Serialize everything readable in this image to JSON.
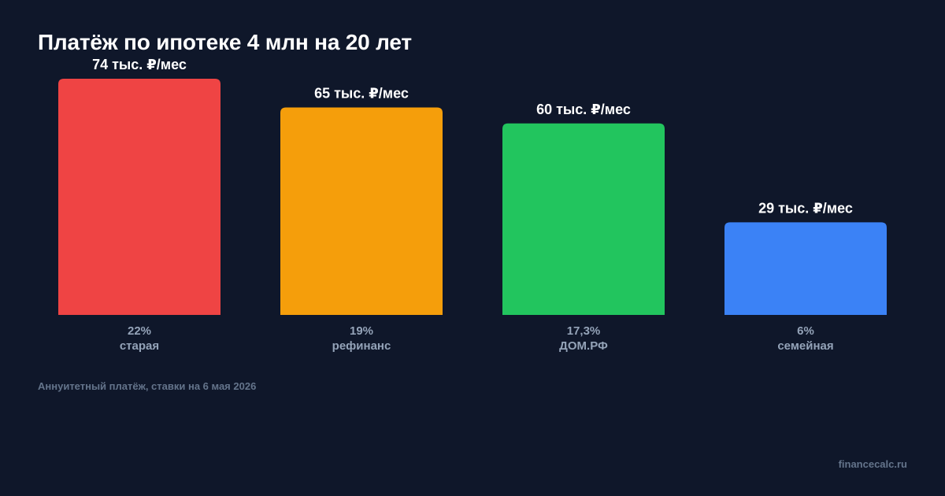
{
  "chart_data": {
    "type": "bar",
    "title": "Платёж по ипотеке 4 млн на 20 лет",
    "categories": [
      "старая",
      "рефинанс",
      "ДОМ.РФ",
      "семейная"
    ],
    "rates": [
      "22%",
      "19%",
      "17,3%",
      "6%"
    ],
    "values": [
      74,
      65,
      60,
      29
    ],
    "value_labels": [
      "74 тыс. ₽/мес",
      "65 тыс. ₽/мес",
      "60 тыс. ₽/мес",
      "29 тыс. ₽/мес"
    ],
    "unit": "тыс. ₽/мес",
    "colors": [
      "#ef4444",
      "#f59e0b",
      "#22c55e",
      "#3b82f6"
    ],
    "grid": false,
    "legend": "none"
  },
  "footnote": "Аннуитетный платёж, ставки на 6 мая 2026",
  "source": "financecalc.ru"
}
